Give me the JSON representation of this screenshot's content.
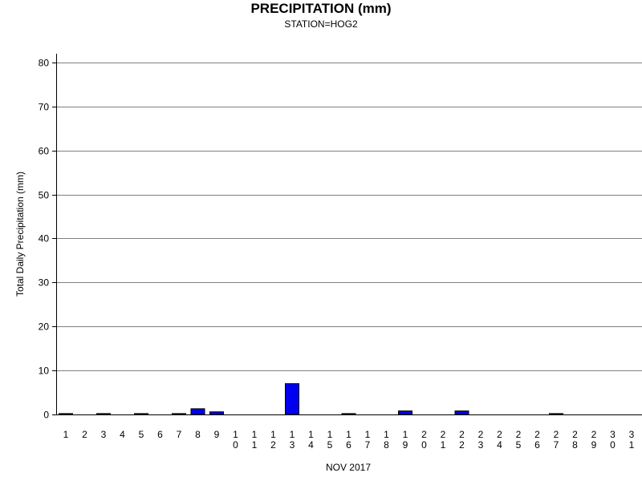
{
  "chart_data": {
    "type": "bar",
    "title": "PRECIPITATION (mm)",
    "subtitle": "STATION=HOG2",
    "xlabel": "NOV 2017",
    "ylabel": "Total Daily Precipitation (mm)",
    "ylim": [
      0,
      80
    ],
    "yticks": [
      0,
      10,
      20,
      30,
      40,
      50,
      60,
      70,
      80
    ],
    "grid": true,
    "bar_color": "#0000ee",
    "categories": [
      "1",
      "2",
      "3",
      "4",
      "5",
      "6",
      "7",
      "8",
      "9",
      "10",
      "11",
      "12",
      "13",
      "14",
      "15",
      "16",
      "17",
      "18",
      "19",
      "20",
      "21",
      "22",
      "23",
      "24",
      "25",
      "26",
      "27",
      "28",
      "29",
      "30",
      "31"
    ],
    "values": [
      0.2,
      0,
      0.2,
      0,
      0.2,
      0,
      0.2,
      1.3,
      0.6,
      0,
      0,
      0,
      7.0,
      0,
      0,
      0.2,
      0,
      0,
      0.8,
      0,
      0,
      0.8,
      0,
      0,
      0,
      0,
      0.2,
      0,
      0,
      0,
      0
    ]
  }
}
